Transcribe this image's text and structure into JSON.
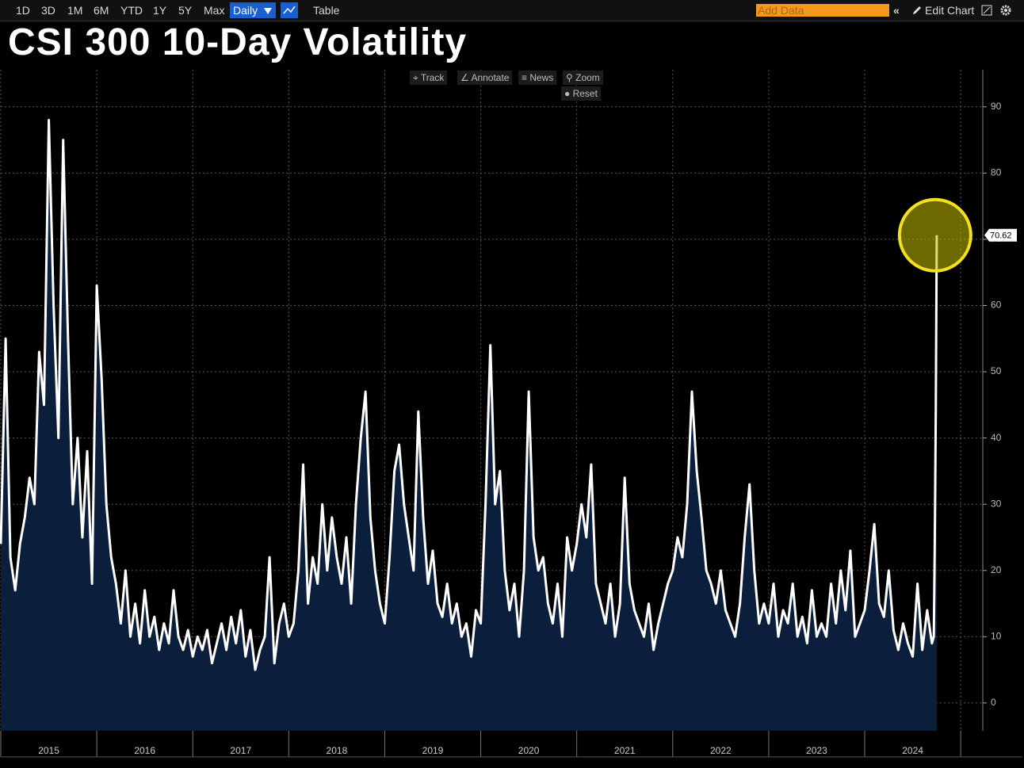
{
  "toolbar": {
    "ranges": [
      "1D",
      "3D",
      "1M",
      "6M",
      "YTD",
      "1Y",
      "5Y",
      "Max"
    ],
    "frequency": "Daily",
    "table": "Table",
    "add_data": "Add Data",
    "edit_chart": "Edit Chart"
  },
  "chart_tools": [
    "Track",
    "Annotate",
    "News",
    "Zoom",
    "Reset"
  ],
  "chart_data": {
    "type": "area",
    "title": "CSI 300 10-Day Volatility",
    "x": [
      2015.0,
      2015.05,
      2015.1,
      2015.15,
      2015.2,
      2015.25,
      2015.3,
      2015.35,
      2015.4,
      2015.45,
      2015.5,
      2015.55,
      2015.6,
      2015.65,
      2015.7,
      2015.75,
      2015.8,
      2015.85,
      2015.9,
      2015.95,
      2016.0,
      2016.05,
      2016.1,
      2016.15,
      2016.2,
      2016.25,
      2016.3,
      2016.35,
      2016.4,
      2016.45,
      2016.5,
      2016.55,
      2016.6,
      2016.65,
      2016.7,
      2016.75,
      2016.8,
      2016.85,
      2016.9,
      2016.95,
      2017.0,
      2017.05,
      2017.1,
      2017.15,
      2017.2,
      2017.25,
      2017.3,
      2017.35,
      2017.4,
      2017.45,
      2017.5,
      2017.55,
      2017.6,
      2017.65,
      2017.7,
      2017.75,
      2017.8,
      2017.85,
      2017.9,
      2017.95,
      2018.0,
      2018.05,
      2018.1,
      2018.15,
      2018.2,
      2018.25,
      2018.3,
      2018.35,
      2018.4,
      2018.45,
      2018.5,
      2018.55,
      2018.6,
      2018.65,
      2018.7,
      2018.75,
      2018.8,
      2018.85,
      2018.9,
      2018.95,
      2019.0,
      2019.05,
      2019.1,
      2019.15,
      2019.2,
      2019.25,
      2019.3,
      2019.35,
      2019.4,
      2019.45,
      2019.5,
      2019.55,
      2019.6,
      2019.65,
      2019.7,
      2019.75,
      2019.8,
      2019.85,
      2019.9,
      2019.95,
      2020.0,
      2020.05,
      2020.1,
      2020.15,
      2020.2,
      2020.25,
      2020.3,
      2020.35,
      2020.4,
      2020.45,
      2020.5,
      2020.55,
      2020.6,
      2020.65,
      2020.7,
      2020.75,
      2020.8,
      2020.85,
      2020.9,
      2020.95,
      2021.0,
      2021.05,
      2021.1,
      2021.15,
      2021.2,
      2021.25,
      2021.3,
      2021.35,
      2021.4,
      2021.45,
      2021.5,
      2021.55,
      2021.6,
      2021.65,
      2021.7,
      2021.75,
      2021.8,
      2021.85,
      2021.9,
      2021.95,
      2022.0,
      2022.05,
      2022.1,
      2022.15,
      2022.2,
      2022.25,
      2022.3,
      2022.35,
      2022.4,
      2022.45,
      2022.5,
      2022.55,
      2022.6,
      2022.65,
      2022.7,
      2022.75,
      2022.8,
      2022.85,
      2022.9,
      2022.95,
      2023.0,
      2023.05,
      2023.1,
      2023.15,
      2023.2,
      2023.25,
      2023.3,
      2023.35,
      2023.4,
      2023.45,
      2023.5,
      2023.55,
      2023.6,
      2023.65,
      2023.7,
      2023.75,
      2023.8,
      2023.85,
      2023.9,
      2023.95,
      2024.0,
      2024.05,
      2024.1,
      2024.15,
      2024.2,
      2024.25,
      2024.3,
      2024.35,
      2024.4,
      2024.45,
      2024.5,
      2024.55,
      2024.6,
      2024.65,
      2024.7,
      2024.72,
      2024.73,
      2024.74,
      2024.75
    ],
    "series": [
      {
        "color": "#ffffff",
        "fill": "#0b1f3c",
        "values": [
          24,
          55,
          22,
          17,
          24,
          28,
          34,
          30,
          53,
          45,
          88,
          60,
          40,
          85,
          55,
          30,
          40,
          25,
          38,
          18,
          63,
          49,
          30,
          22,
          18,
          12,
          20,
          10,
          15,
          9,
          17,
          10,
          13,
          8,
          12,
          9,
          17,
          10,
          8,
          11,
          7,
          10,
          8,
          11,
          6,
          9,
          12,
          8,
          13,
          9,
          14,
          7,
          11,
          5,
          8,
          10,
          22,
          6,
          12,
          15,
          10,
          12,
          20,
          36,
          15,
          22,
          18,
          30,
          20,
          28,
          22,
          18,
          25,
          15,
          30,
          40,
          47,
          28,
          20,
          15,
          12,
          22,
          35,
          39,
          30,
          25,
          20,
          44,
          28,
          18,
          23,
          15,
          13,
          18,
          12,
          15,
          10,
          12,
          7,
          14,
          12,
          30,
          54,
          30,
          35,
          20,
          14,
          18,
          10,
          20,
          47,
          25,
          20,
          22,
          15,
          12,
          18,
          10,
          25,
          20,
          24,
          30,
          25,
          36,
          18,
          15,
          12,
          18,
          10,
          15,
          34,
          18,
          14,
          12,
          10,
          15,
          8,
          12,
          15,
          18,
          20,
          25,
          22,
          30,
          47,
          35,
          28,
          20,
          18,
          15,
          20,
          14,
          12,
          10,
          15,
          25,
          33,
          20,
          12,
          15,
          12,
          18,
          10,
          14,
          12,
          18,
          10,
          13,
          9,
          17,
          10,
          12,
          10,
          18,
          12,
          20,
          14,
          23,
          10,
          12,
          14,
          20,
          27,
          15,
          13,
          20,
          11,
          8,
          12,
          9,
          7,
          18,
          8,
          14,
          9,
          10,
          24,
          44,
          70.62
        ]
      }
    ],
    "xlim": [
      2015,
      2025.23
    ],
    "xticks": [
      2015,
      2016,
      2017,
      2018,
      2019,
      2020,
      2021,
      2022,
      2023,
      2024,
      2025
    ],
    "ylim": [
      -4.2,
      95.6
    ],
    "yticks": [
      0,
      10,
      20,
      30,
      40,
      50,
      60,
      70,
      80,
      90
    ],
    "grid": true,
    "highlight_last": true
  }
}
